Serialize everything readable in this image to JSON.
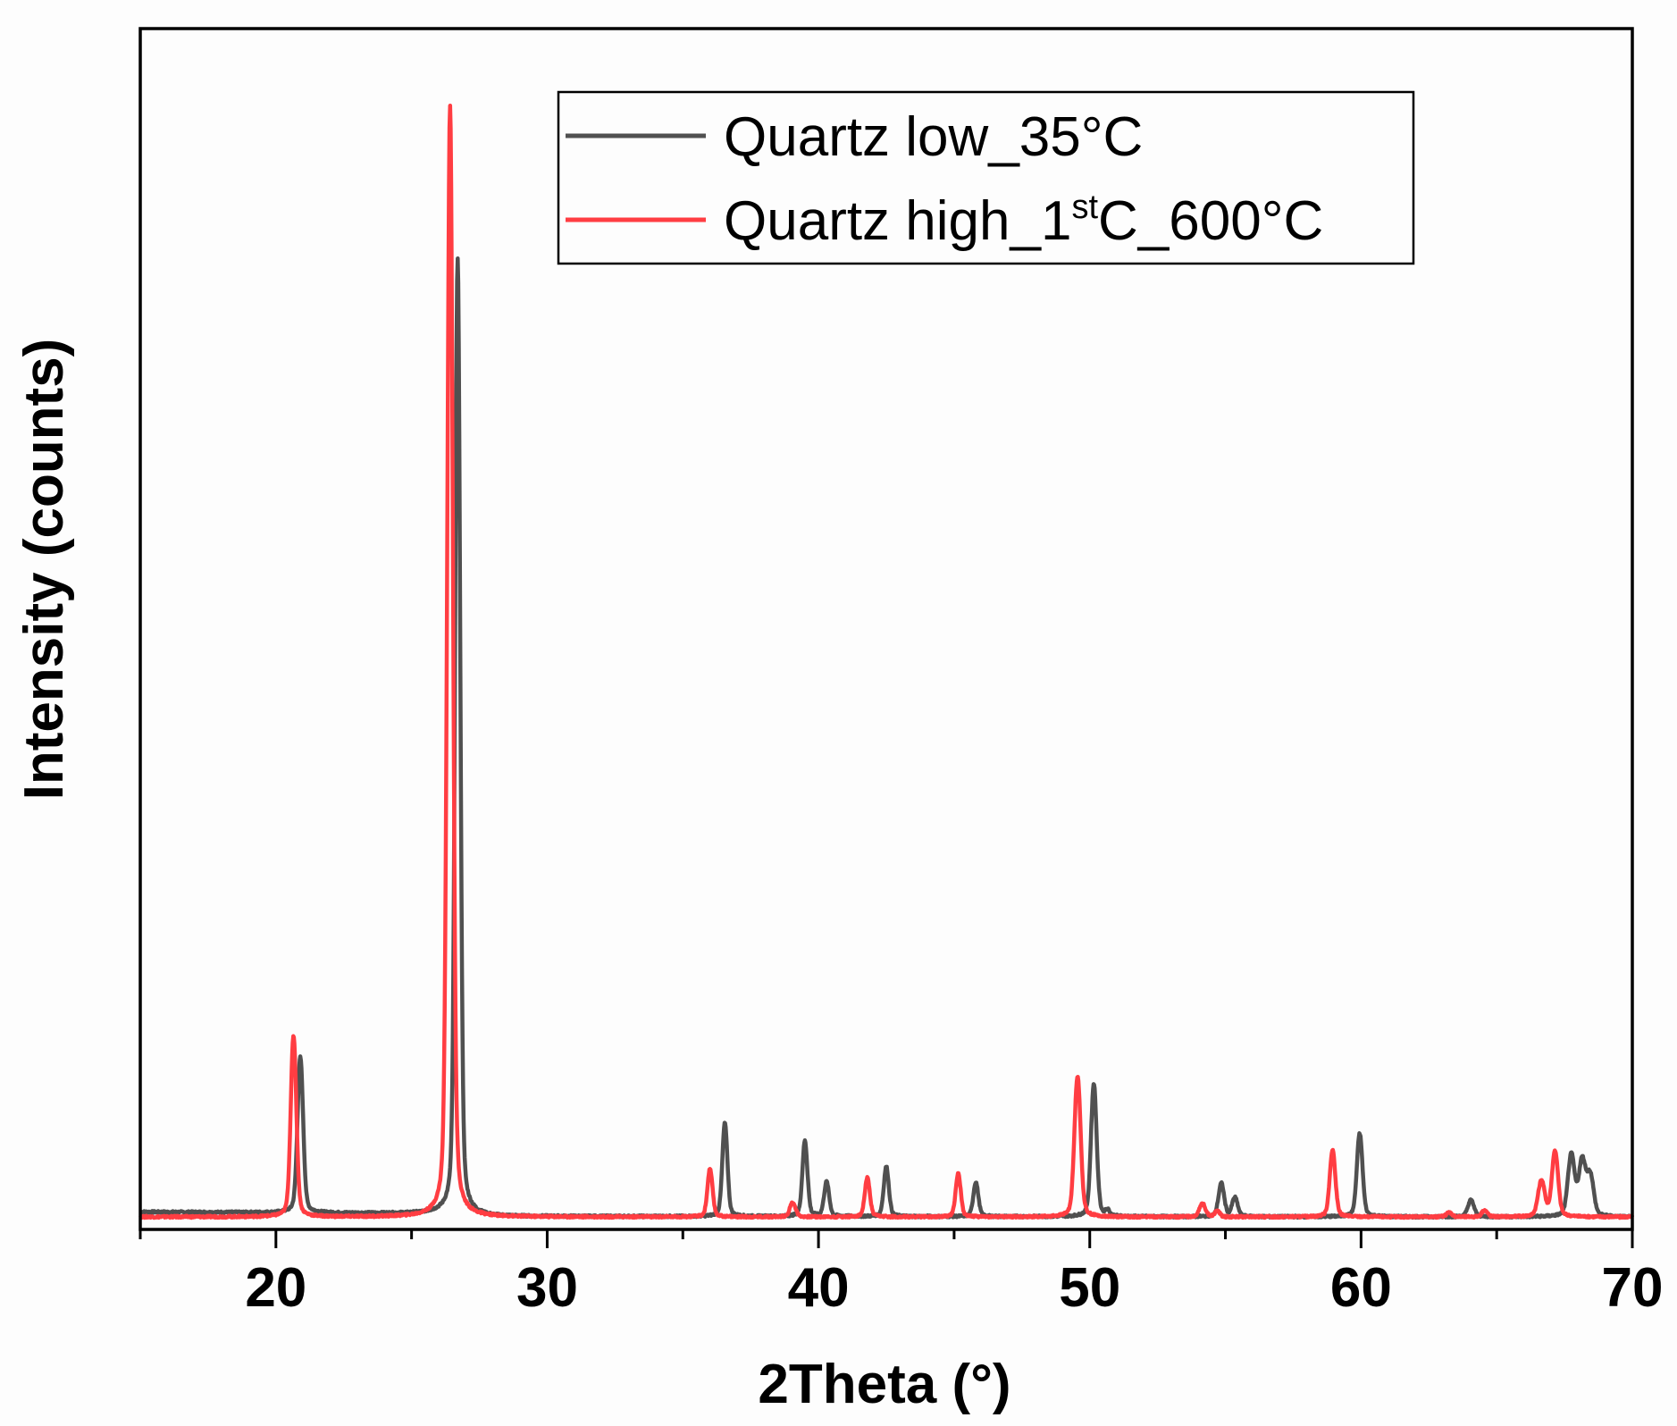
{
  "chart_data": {
    "type": "line",
    "title": "",
    "xlabel": "2Theta (°)",
    "ylabel": "Intensity (counts)",
    "xlim": [
      15,
      70
    ],
    "ylim": [
      -2,
      107
    ],
    "x_ticks_major": [
      20,
      30,
      40,
      50,
      60,
      70
    ],
    "x_tick_labels": [
      "20",
      "30",
      "40",
      "50",
      "60",
      "70"
    ],
    "x_ticks_minor": [
      15,
      25,
      35,
      45,
      55,
      65
    ],
    "y_ticks_shown": false,
    "grid": false,
    "legend_position": "upper right (inside)",
    "series": [
      {
        "name": "Quartz low_35°C",
        "color": "#505050",
        "baseline": [
          [
            15,
            0.45
          ],
          [
            26.0,
            0.3
          ],
          [
            28,
            0.05
          ],
          [
            70,
            0.0
          ]
        ],
        "peaks": [
          {
            "x": 20.9,
            "height": 14.0,
            "width": 0.1
          },
          {
            "x": 26.7,
            "height": 86.0,
            "width": 0.09
          },
          {
            "x": 36.55,
            "height": 8.4,
            "width": 0.09
          },
          {
            "x": 39.5,
            "height": 6.8,
            "width": 0.09
          },
          {
            "x": 40.3,
            "height": 3.1,
            "width": 0.09
          },
          {
            "x": 42.5,
            "height": 4.5,
            "width": 0.09
          },
          {
            "x": 45.8,
            "height": 3.1,
            "width": 0.09
          },
          {
            "x": 50.15,
            "height": 12.0,
            "width": 0.1
          },
          {
            "x": 50.65,
            "height": 0.5,
            "width": 0.08
          },
          {
            "x": 54.85,
            "height": 3.0,
            "width": 0.1
          },
          {
            "x": 55.35,
            "height": 1.7,
            "width": 0.1
          },
          {
            "x": 59.95,
            "height": 7.5,
            "width": 0.1
          },
          {
            "x": 64.05,
            "height": 1.5,
            "width": 0.11
          },
          {
            "x": 67.75,
            "height": 5.5,
            "width": 0.12
          },
          {
            "x": 68.15,
            "height": 4.9,
            "width": 0.12
          },
          {
            "x": 68.45,
            "height": 3.6,
            "width": 0.12
          }
        ]
      },
      {
        "name": "Quartz high_1stC_600°C",
        "name_parts": {
          "main": "Quartz high_1",
          "superscript": "st",
          "rest": "C_600°C"
        },
        "color": "#ff3d42",
        "baseline": [
          [
            15,
            0.0
          ],
          [
            70,
            0.0
          ]
        ],
        "peaks": [
          {
            "x": 20.65,
            "height": 16.3,
            "width": 0.1
          },
          {
            "x": 26.42,
            "height": 100.0,
            "width": 0.1
          },
          {
            "x": 36.0,
            "height": 4.3,
            "width": 0.09
          },
          {
            "x": 39.05,
            "height": 1.3,
            "width": 0.1
          },
          {
            "x": 41.8,
            "height": 3.5,
            "width": 0.09
          },
          {
            "x": 45.15,
            "height": 3.9,
            "width": 0.09
          },
          {
            "x": 49.55,
            "height": 12.7,
            "width": 0.11
          },
          {
            "x": 54.15,
            "height": 1.2,
            "width": 0.11
          },
          {
            "x": 54.7,
            "height": 0.5,
            "width": 0.09
          },
          {
            "x": 58.95,
            "height": 6.0,
            "width": 0.1
          },
          {
            "x": 63.25,
            "height": 0.4,
            "width": 0.1
          },
          {
            "x": 64.55,
            "height": 0.6,
            "width": 0.1
          },
          {
            "x": 66.65,
            "height": 3.2,
            "width": 0.12
          },
          {
            "x": 67.15,
            "height": 5.9,
            "width": 0.11
          }
        ]
      }
    ]
  },
  "legend": {
    "items": [
      {
        "label": "Quartz low_35°C",
        "color": "#505050"
      },
      {
        "label_main": "Quartz high_1",
        "label_sup": "st",
        "label_rest": "C_600°C",
        "color": "#ff3d42"
      }
    ]
  },
  "axes": {
    "x_label": "2Theta (°)",
    "y_label": "Intensity (counts)"
  }
}
